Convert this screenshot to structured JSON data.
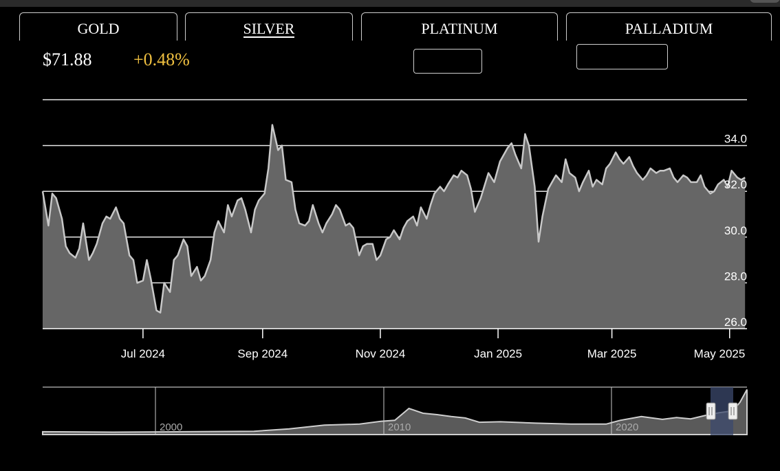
{
  "tabs": [
    {
      "label": "GOLD",
      "active": false
    },
    {
      "label": "SILVER",
      "active": true
    },
    {
      "label": "PLATINUM",
      "active": false
    },
    {
      "label": "PALLADIUM",
      "active": false
    }
  ],
  "quote": {
    "price": "$71.88",
    "change": "+0.48%",
    "change_color": "#f0c040"
  },
  "chart_data": {
    "type": "area",
    "title": "",
    "xlabel": "",
    "ylabel": "",
    "ylim": [
      26.0,
      36.0
    ],
    "y_ticks": [
      "26.0",
      "28.0",
      "30.0",
      "32.0",
      "34.0"
    ],
    "x_ticks": [
      "Jul 2024",
      "Sep 2024",
      "Nov 2024",
      "Jan 2025",
      "Mar 2025",
      "May 2025"
    ],
    "x_range": [
      "2024-05-10",
      "2025-05-10"
    ],
    "grid": true,
    "line_color": "#c8c8c8",
    "fill_color": "#666666",
    "series": [
      {
        "x": [
          "2024-05-10",
          "2024-05-13",
          "2024-05-15",
          "2024-05-17",
          "2024-05-20",
          "2024-05-22",
          "2024-05-24",
          "2024-05-27",
          "2024-05-29",
          "2024-05-31",
          "2024-06-03",
          "2024-06-05",
          "2024-06-07",
          "2024-06-10",
          "2024-06-12",
          "2024-06-14",
          "2024-06-17",
          "2024-06-19",
          "2024-06-21",
          "2024-06-24",
          "2024-06-26",
          "2024-06-28",
          "2024-07-01",
          "2024-07-03",
          "2024-07-05",
          "2024-07-08",
          "2024-07-10",
          "2024-07-12",
          "2024-07-15",
          "2024-07-17",
          "2024-07-19",
          "2024-07-22",
          "2024-07-24",
          "2024-07-26",
          "2024-07-29",
          "2024-07-31",
          "2024-08-02",
          "2024-08-05",
          "2024-08-07",
          "2024-08-09",
          "2024-08-12",
          "2024-08-14",
          "2024-08-16",
          "2024-08-19",
          "2024-08-21",
          "2024-08-23",
          "2024-08-26",
          "2024-08-28",
          "2024-08-30",
          "2024-09-02",
          "2024-09-04",
          "2024-09-06",
          "2024-09-09",
          "2024-09-11",
          "2024-09-13",
          "2024-09-16",
          "2024-09-18",
          "2024-09-20",
          "2024-09-23",
          "2024-09-25",
          "2024-09-27",
          "2024-09-30",
          "2024-10-02",
          "2024-10-04",
          "2024-10-07",
          "2024-10-09",
          "2024-10-11",
          "2024-10-14",
          "2024-10-16",
          "2024-10-18",
          "2024-10-21",
          "2024-10-23",
          "2024-10-25",
          "2024-10-28",
          "2024-10-30",
          "2024-11-01",
          "2024-11-04",
          "2024-11-06",
          "2024-11-08",
          "2024-11-11",
          "2024-11-13",
          "2024-11-15",
          "2024-11-18",
          "2024-11-20",
          "2024-11-22",
          "2024-11-25",
          "2024-11-27",
          "2024-11-29",
          "2024-12-02",
          "2024-12-04",
          "2024-12-06",
          "2024-12-09",
          "2024-12-11",
          "2024-12-13",
          "2024-12-16",
          "2024-12-18",
          "2024-12-20",
          "2024-12-23",
          "2024-12-27",
          "2024-12-30",
          "2025-01-02",
          "2025-01-06",
          "2025-01-08",
          "2025-01-10",
          "2025-01-13",
          "2025-01-15",
          "2025-01-17",
          "2025-01-20",
          "2025-01-22",
          "2025-01-24",
          "2025-01-27",
          "2025-01-29",
          "2025-01-31",
          "2025-02-03",
          "2025-02-05",
          "2025-02-07",
          "2025-02-10",
          "2025-02-12",
          "2025-02-14",
          "2025-02-17",
          "2025-02-19",
          "2025-02-21",
          "2025-02-24",
          "2025-02-26",
          "2025-02-28",
          "2025-03-03",
          "2025-03-05",
          "2025-03-07",
          "2025-03-10",
          "2025-03-12",
          "2025-03-14",
          "2025-03-17",
          "2025-03-19",
          "2025-03-21",
          "2025-03-24",
          "2025-03-26",
          "2025-03-28",
          "2025-03-31",
          "2025-04-02",
          "2025-04-04",
          "2025-04-07",
          "2025-04-09",
          "2025-04-11",
          "2025-04-14",
          "2025-04-16",
          "2025-04-18",
          "2025-04-21",
          "2025-04-23",
          "2025-04-25",
          "2025-04-28",
          "2025-04-30",
          "2025-05-02",
          "2025-05-05",
          "2025-05-07",
          "2025-05-09"
        ],
        "y": [
          32.0,
          30.5,
          31.9,
          31.7,
          30.8,
          29.6,
          29.3,
          29.1,
          29.5,
          30.6,
          29.0,
          29.3,
          29.7,
          30.6,
          30.9,
          30.8,
          31.3,
          30.8,
          30.6,
          29.2,
          29.0,
          28.0,
          28.1,
          29.0,
          28.2,
          26.8,
          26.7,
          28.0,
          27.6,
          29.0,
          29.2,
          29.9,
          29.6,
          28.3,
          28.7,
          28.1,
          28.3,
          29.0,
          30.2,
          30.7,
          30.2,
          31.4,
          30.9,
          31.6,
          31.7,
          31.2,
          30.2,
          31.2,
          31.6,
          31.9,
          33.0,
          34.9,
          33.8,
          34.0,
          32.5,
          32.4,
          31.2,
          30.6,
          30.5,
          30.7,
          31.4,
          30.6,
          30.2,
          30.6,
          31.0,
          31.4,
          31.2,
          30.5,
          30.6,
          30.4,
          29.2,
          29.6,
          29.7,
          29.7,
          29.0,
          29.2,
          29.9,
          30.0,
          30.3,
          29.9,
          30.4,
          30.7,
          30.9,
          30.5,
          31.3,
          30.8,
          31.4,
          31.9,
          32.2,
          32.0,
          32.3,
          32.7,
          32.6,
          32.9,
          32.7,
          32.1,
          31.1,
          31.7,
          32.8,
          32.4,
          33.3,
          33.9,
          34.1,
          33.6,
          33.0,
          34.5,
          34.0,
          32.2,
          29.8,
          30.9,
          32.1,
          32.4,
          32.7,
          32.4,
          33.4,
          32.8,
          32.6,
          32.0,
          32.4,
          32.9,
          32.2,
          32.5,
          32.3,
          33.0,
          33.2,
          33.7,
          33.4,
          33.2,
          33.5,
          33.1,
          32.8,
          32.5,
          32.7,
          33.0,
          32.8,
          32.9,
          32.9,
          33.0,
          32.6,
          32.4,
          32.7,
          32.6,
          32.4,
          32.4,
          32.7,
          32.2,
          31.9,
          32.0,
          32.3,
          32.5,
          32.2,
          32.9,
          32.6,
          32.5,
          32.6
        ]
      }
    ]
  },
  "navigator": {
    "labels": [
      "2000",
      "2010",
      "2020"
    ]
  }
}
